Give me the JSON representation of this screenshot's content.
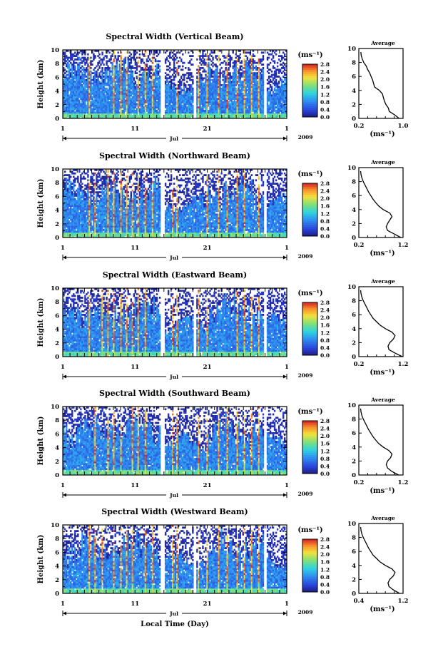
{
  "figure": {
    "x_axis_label": "Local Time (Day)",
    "month_label": "Jul",
    "year_label": "2009"
  },
  "chart_data": [
    {
      "type": "heatmap",
      "title": "Spectral Width (Vertical Beam)",
      "ylabel": "Height (km)",
      "xlabel": "Local Time (Day)",
      "x_ticks": [
        "1",
        "11",
        "21",
        "1"
      ],
      "x_range_days": [
        1,
        32
      ],
      "ylim": [
        0,
        10
      ],
      "y_ticks": [
        "0",
        "2",
        "4",
        "6",
        "8",
        "10"
      ],
      "colorbar": {
        "unit": "(ms⁻¹)",
        "range": [
          0.0,
          2.8
        ],
        "ticks": [
          "0.0",
          "0.4",
          "0.8",
          "1.2",
          "1.6",
          "2.0",
          "2.4",
          "2.8"
        ]
      },
      "average_profile": {
        "title": "Average",
        "xlabel": "(ms⁻¹)",
        "xlim": [
          0.2,
          1.1
        ],
        "x_ticks": [
          "0.2",
          "1.0"
        ],
        "heights": [
          0,
          0.5,
          1,
          1.5,
          2,
          2.5,
          3,
          3.5,
          4,
          4.5,
          5,
          5.5,
          6,
          6.5,
          7,
          7.5,
          8,
          8.5,
          9,
          9.5
        ],
        "values": [
          1.02,
          0.93,
          0.82,
          0.8,
          0.75,
          0.72,
          0.7,
          0.68,
          0.62,
          0.52,
          0.5,
          0.48,
          0.45,
          0.42,
          0.38,
          0.35,
          0.3,
          0.27,
          0.25,
          0.24
        ]
      }
    },
    {
      "type": "heatmap",
      "title": "Spectral Width (Northward Beam)",
      "ylabel": "Height (km)",
      "xlabel": "Local Time (Day)",
      "x_ticks": [
        "1",
        "11",
        "21",
        "1"
      ],
      "x_range_days": [
        1,
        32
      ],
      "ylim": [
        0,
        10
      ],
      "y_ticks": [
        "0",
        "2",
        "4",
        "6",
        "8",
        "10"
      ],
      "colorbar": {
        "unit": "(ms⁻¹)",
        "range": [
          0.0,
          2.8
        ],
        "ticks": [
          "0.0",
          "0.4",
          "0.8",
          "1.2",
          "1.6",
          "2.0",
          "2.4",
          "2.8"
        ]
      },
      "average_profile": {
        "title": "Average",
        "xlabel": "(ms⁻¹)",
        "xlim": [
          0.2,
          1.2
        ],
        "x_ticks": [
          "0.2",
          "1.2"
        ],
        "heights": [
          0,
          0.5,
          1,
          1.5,
          2,
          2.5,
          3,
          3.5,
          4,
          4.5,
          5,
          5.5,
          6,
          6.5,
          7,
          7.5,
          8,
          8.5,
          9,
          9.5
        ],
        "values": [
          1.15,
          1.0,
          0.85,
          0.82,
          0.85,
          0.9,
          0.95,
          0.9,
          0.75,
          0.65,
          0.58,
          0.52,
          0.47,
          0.42,
          0.38,
          0.34,
          0.3,
          0.27,
          0.25,
          0.24
        ]
      }
    },
    {
      "type": "heatmap",
      "title": "Spectral Width (Eastward Beam)",
      "ylabel": "Height (km)",
      "xlabel": "Local Time (Day)",
      "x_ticks": [
        "1",
        "11",
        "21",
        "1"
      ],
      "x_range_days": [
        1,
        32
      ],
      "ylim": [
        0,
        10
      ],
      "y_ticks": [
        "0",
        "2",
        "4",
        "6",
        "8",
        "10"
      ],
      "colorbar": {
        "unit": "(ms⁻¹)",
        "range": [
          0.0,
          2.8
        ],
        "ticks": [
          "0.0",
          "0.4",
          "0.8",
          "1.2",
          "1.6",
          "2.0",
          "2.4",
          "2.8"
        ]
      },
      "average_profile": {
        "title": "Average",
        "xlabel": "(ms⁻¹)",
        "xlim": [
          0.2,
          1.2
        ],
        "x_ticks": [
          "0.2",
          "1.2"
        ],
        "heights": [
          0,
          0.5,
          1,
          1.5,
          2,
          2.5,
          3,
          3.5,
          4,
          4.5,
          5,
          5.5,
          6,
          6.5,
          7,
          7.5,
          8,
          8.5,
          9,
          9.5
        ],
        "values": [
          1.18,
          1.02,
          0.88,
          0.86,
          0.9,
          0.98,
          1.02,
          0.95,
          0.8,
          0.68,
          0.6,
          0.52,
          0.47,
          0.42,
          0.38,
          0.34,
          0.3,
          0.27,
          0.25,
          0.24
        ]
      }
    },
    {
      "type": "heatmap",
      "title": "Spectral Width (Southward Beam)",
      "ylabel": "Height (km)",
      "xlabel": "Local Time (Day)",
      "x_ticks": [
        "1",
        "11",
        "21",
        "1"
      ],
      "x_range_days": [
        1,
        32
      ],
      "ylim": [
        0,
        10
      ],
      "y_ticks": [
        "0",
        "2",
        "4",
        "6",
        "8",
        "10"
      ],
      "colorbar": {
        "unit": "(ms⁻¹)",
        "range": [
          0.0,
          2.8
        ],
        "ticks": [
          "0.0",
          "0.4",
          "0.8",
          "1.2",
          "1.6",
          "2.0",
          "2.4",
          "2.8"
        ]
      },
      "average_profile": {
        "title": "Average",
        "xlabel": "(ms⁻¹)",
        "xlim": [
          0.2,
          1.2
        ],
        "x_ticks": [
          "0.2",
          "1.2"
        ],
        "heights": [
          0,
          0.5,
          1,
          1.5,
          2,
          2.5,
          3,
          3.5,
          4,
          4.5,
          5,
          5.5,
          6,
          6.5,
          7,
          7.5,
          8,
          8.5,
          9,
          9.5
        ],
        "values": [
          1.1,
          0.95,
          0.85,
          0.82,
          0.85,
          0.92,
          0.95,
          0.88,
          0.75,
          0.65,
          0.58,
          0.52,
          0.47,
          0.42,
          0.38,
          0.34,
          0.3,
          0.27,
          0.25,
          0.24
        ]
      }
    },
    {
      "type": "heatmap",
      "title": "Spectral Width (Westward Beam)",
      "ylabel": "Height (km)",
      "xlabel": "Local Time (Day)",
      "x_ticks": [
        "1",
        "11",
        "21",
        "1"
      ],
      "x_range_days": [
        1,
        32
      ],
      "ylim": [
        0,
        10
      ],
      "y_ticks": [
        "0",
        "2",
        "4",
        "6",
        "8",
        "10"
      ],
      "colorbar": {
        "unit": "(ms⁻¹)",
        "range": [
          0.0,
          2.8
        ],
        "ticks": [
          "0.0",
          "0.4",
          "0.8",
          "1.2",
          "1.6",
          "2.0",
          "2.4",
          "2.8"
        ]
      },
      "average_profile": {
        "title": "Average",
        "xlabel": "(ms⁻¹)",
        "xlim": [
          0.2,
          1.2
        ],
        "x_ticks": [
          "0.4",
          "1.2"
        ],
        "heights": [
          0,
          0.5,
          1,
          1.5,
          2,
          2.5,
          3,
          3.5,
          4,
          4.5,
          5,
          5.5,
          6,
          6.5,
          7,
          7.5,
          8,
          8.5,
          9,
          9.5
        ],
        "values": [
          1.12,
          0.98,
          0.88,
          0.86,
          0.9,
          0.98,
          1.02,
          0.95,
          0.8,
          0.68,
          0.6,
          0.52,
          0.47,
          0.42,
          0.38,
          0.34,
          0.3,
          0.27,
          0.25,
          0.24
        ]
      }
    }
  ]
}
